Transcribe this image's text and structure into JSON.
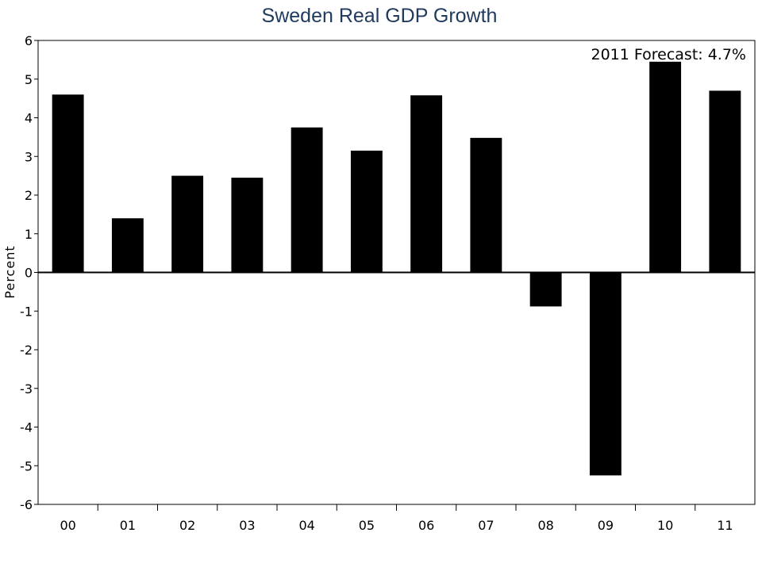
{
  "chart_data": {
    "type": "bar",
    "title": "Sweden Real GDP Growth",
    "xlabel": "",
    "ylabel": "Percent",
    "categories": [
      "00",
      "01",
      "02",
      "03",
      "04",
      "05",
      "06",
      "07",
      "08",
      "09",
      "10",
      "11"
    ],
    "values": [
      4.6,
      1.4,
      2.5,
      2.45,
      3.75,
      3.15,
      4.58,
      3.48,
      -0.88,
      -5.25,
      5.45,
      4.7
    ],
    "ylim": [
      -6,
      6
    ],
    "yticks": [
      "-6",
      "-5",
      "-4",
      "-3",
      "-2",
      "-1",
      "0",
      "1",
      "2",
      "3",
      "4",
      "5",
      "6"
    ],
    "annotation": "2011 Forecast: 4.7%",
    "annotation_position": "top-right",
    "grid": false,
    "legend": "none",
    "bar_color": "#000000"
  }
}
